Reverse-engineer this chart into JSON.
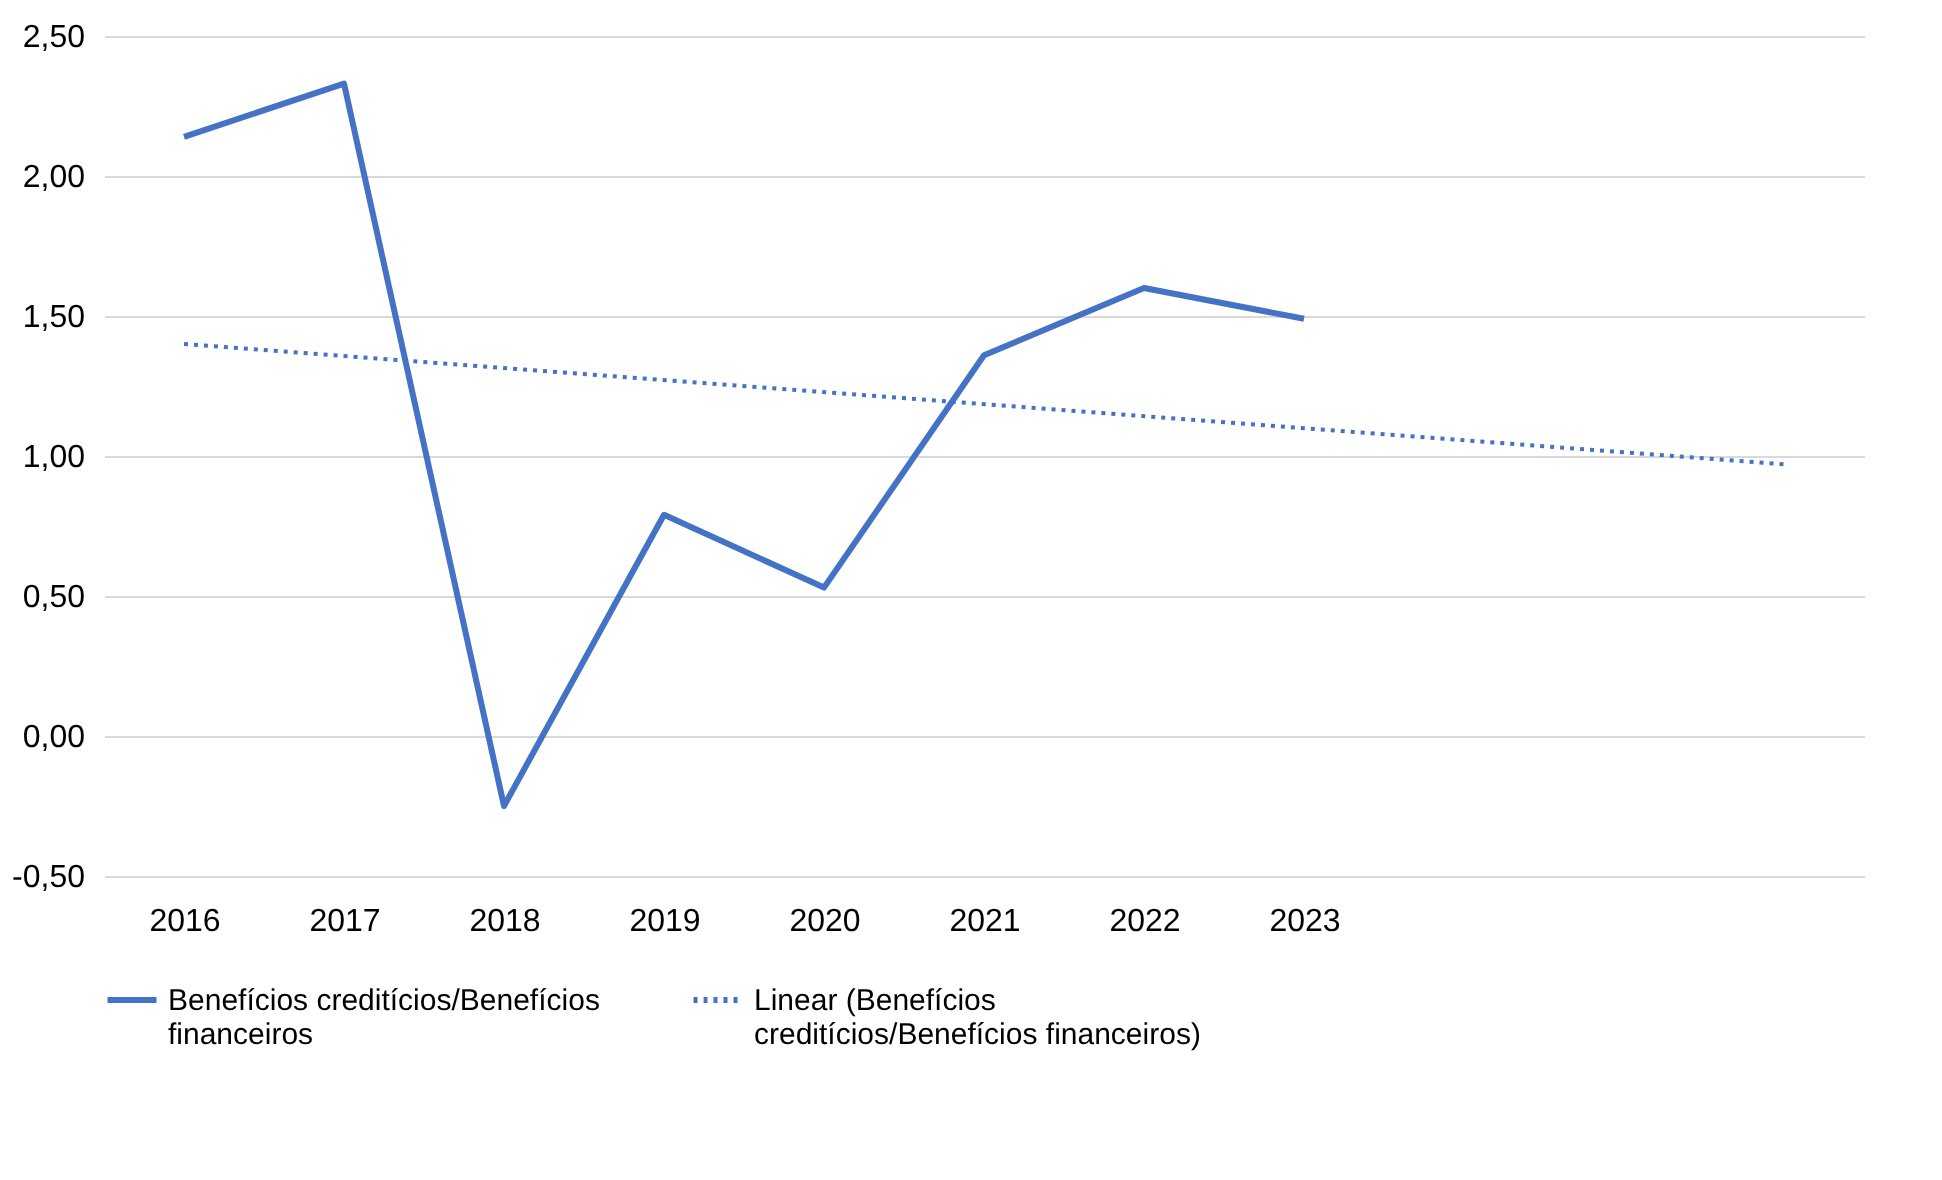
{
  "chart_data": {
    "type": "line",
    "xlim": [
      2015.5,
      2026.5
    ],
    "xticks": [
      2016,
      2017,
      2018,
      2019,
      2020,
      2021,
      2022,
      2023
    ],
    "ylim": [
      -0.5,
      2.5
    ],
    "yticks": [
      {
        "value": -0.5,
        "label": "-0,50"
      },
      {
        "value": 0,
        "label": "0,00"
      },
      {
        "value": 0.5,
        "label": "0,50"
      },
      {
        "value": 1,
        "label": "1,00"
      },
      {
        "value": 1.5,
        "label": "1,50"
      },
      {
        "value": 2,
        "label": "2,00"
      },
      {
        "value": 2.5,
        "label": "2,50"
      }
    ],
    "grid": "y",
    "legend": "bottom",
    "marker": "none",
    "series": [
      {
        "name": "Benefícios creditícios/Benefícios financeiros",
        "color": "#4472c4",
        "line_style": "solid",
        "x": [
          2016,
          2017,
          2018,
          2019,
          2020,
          2021,
          2022,
          2023
        ],
        "values": [
          2.14,
          2.33,
          -0.25,
          0.79,
          0.53,
          1.36,
          1.6,
          1.49
        ]
      },
      {
        "name": "Linear (Benefícios creditícios/Benefícios financeiros)",
        "color": "#4472c4",
        "line_style": "dotted",
        "type": "line",
        "x": [
          2016,
          2026
        ],
        "values": [
          1.4,
          0.97
        ]
      }
    ]
  }
}
